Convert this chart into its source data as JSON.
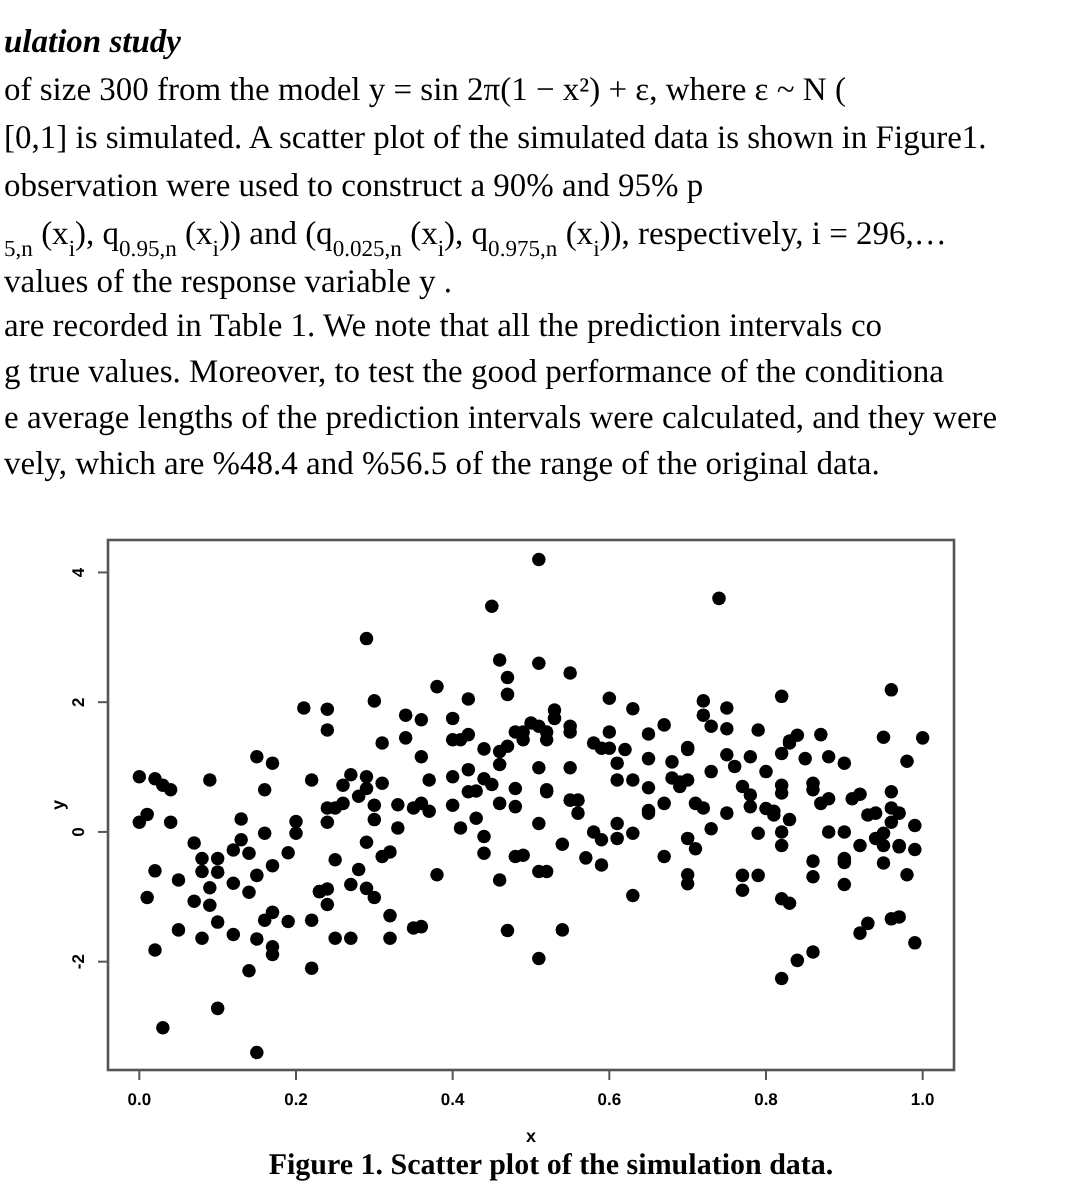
{
  "chart_data": {
    "type": "scatter",
    "xlabel": "x",
    "ylabel": "y",
    "xlim": [
      -0.04,
      1.04
    ],
    "ylim": [
      -3.67,
      4.5
    ],
    "xticks": [
      {
        "value": 0,
        "label": "0.0"
      },
      0.2,
      0.4,
      0.6,
      0.8,
      {
        "value": 1,
        "label": "1.0"
      }
    ],
    "yticks": [
      -2,
      0,
      2,
      4
    ],
    "marker": "circle",
    "annotations": [
      "ulation study",
      "of size 300 from the model y = sin 2π(1 − x²) + ε, where ε ~ N (",
      "[0,1] is simulated. A scatter plot of the simulated data is shown in Figure1.",
      "observation were used to construct a 90% and 95% p",
      "$_{5,n}$ (x$_{i}$), q$_{0.95,n}$ (x$_{i}$)) and (q$_{0.025,n}$ (x$_{i}$), q$_{0.975,n}$ (x$_{i}$)), respectively, i = 296,…",
      "values of the response variable y .",
      "are recorded in Table 1. We note that all the prediction intervals co",
      "g true values. Moreover, to test the good performance of the conditiona",
      "e average lengths of the prediction intervals were calculated, and they were",
      "vely, which are %48.4 and %56.5 of the range of the original data.",
      "Figure 1. Scatter plot of the simulation data."
    ],
    "series": [
      {
        "color": "#000000",
        "x": [
          0.0,
          0.02,
          0.03,
          0.04,
          0.0,
          0.01,
          0.04,
          0.01,
          0.02,
          0.02,
          0.03,
          0.05,
          0.05,
          0.07,
          0.07,
          0.08,
          0.08,
          0.09,
          0.09,
          0.1,
          0.1,
          0.1,
          0.08,
          0.09,
          0.1,
          0.12,
          0.12,
          0.13,
          0.13,
          0.12,
          0.14,
          0.14,
          0.14,
          0.15,
          0.15,
          0.15,
          0.16,
          0.16,
          0.17,
          0.17,
          0.16,
          0.15,
          0.17,
          0.17,
          0.17,
          0.19,
          0.19,
          0.2,
          0.2,
          0.21,
          0.22,
          0.22,
          0.22,
          0.23,
          0.23,
          0.24,
          0.24,
          0.24,
          0.24,
          0.24,
          0.24,
          0.25,
          0.25,
          0.25,
          0.26,
          0.26,
          0.27,
          0.27,
          0.27,
          0.28,
          0.28,
          0.29,
          0.29,
          0.29,
          0.29,
          0.29,
          0.3,
          0.3,
          0.3,
          0.3,
          0.31,
          0.31,
          0.31,
          0.32,
          0.32,
          0.32,
          0.33,
          0.33,
          0.34,
          0.34,
          0.35,
          0.35,
          0.36,
          0.36,
          0.36,
          0.36,
          0.37,
          0.37,
          0.38,
          0.38,
          0.4,
          0.4,
          0.4,
          0.4,
          0.41,
          0.41,
          0.42,
          0.42,
          0.42,
          0.42,
          0.43,
          0.43,
          0.44,
          0.44,
          0.44,
          0.44,
          0.45,
          0.45,
          0.46,
          0.46,
          0.46,
          0.46,
          0.47,
          0.46,
          0.47,
          0.47,
          0.47,
          0.48,
          0.48,
          0.48,
          0.48,
          0.51,
          0.51,
          0.49,
          0.5,
          0.49,
          0.51,
          0.52,
          0.52,
          0.53,
          0.53,
          0.51,
          0.52,
          0.52,
          0.51,
          0.49,
          0.51,
          0.52,
          0.51,
          0.54,
          0.54,
          0.55,
          0.55,
          0.55,
          0.55,
          0.55,
          0.56,
          0.56,
          0.57,
          0.58,
          0.58,
          0.59,
          0.59,
          0.59,
          0.6,
          0.6,
          0.6,
          0.61,
          0.61,
          0.61,
          0.61,
          0.62,
          0.63,
          0.63,
          0.63,
          0.63,
          0.65,
          0.65,
          0.65,
          0.65,
          0.65,
          0.67,
          0.67,
          0.67,
          0.68,
          0.68,
          0.69,
          0.69,
          0.7,
          0.7,
          0.7,
          0.7,
          0.7,
          0.7,
          0.71,
          0.71,
          0.72,
          0.72,
          0.72,
          0.73,
          0.73,
          0.73,
          0.74,
          0.75,
          0.75,
          0.75,
          0.75,
          0.76,
          0.77,
          0.77,
          0.77,
          0.78,
          0.78,
          0.78,
          0.79,
          0.79,
          0.79,
          0.8,
          0.8,
          0.81,
          0.81,
          0.82,
          0.82,
          0.82,
          0.82,
          0.82,
          0.82,
          0.82,
          0.83,
          0.83,
          0.82,
          0.83,
          0.83,
          0.84,
          0.84,
          0.85,
          0.86,
          0.86,
          0.86,
          0.86,
          0.86,
          0.87,
          0.87,
          0.88,
          0.88,
          0.88,
          0.9,
          0.9,
          0.9,
          0.9,
          0.9,
          0.91,
          0.92,
          0.92,
          0.92,
          0.93,
          0.93,
          0.94,
          0.94,
          0.95,
          0.95,
          0.95,
          0.95,
          0.96,
          0.96,
          0.96,
          0.96,
          0.96,
          0.97,
          0.97,
          0.97,
          0.97,
          0.98,
          0.98,
          0.99,
          0.99,
          0.99,
          1.0
        ],
        "values": [
          0.85,
          0.82,
          0.72,
          0.65,
          0.15,
          0.27,
          0.15,
          -1.01,
          -0.6,
          -1.82,
          -3.02,
          -0.74,
          -1.51,
          -0.17,
          -1.07,
          -0.61,
          -0.41,
          -0.86,
          -1.13,
          -0.41,
          -0.62,
          -1.39,
          -1.64,
          0.8,
          -2.72,
          -0.28,
          -0.79,
          -0.12,
          0.2,
          -1.58,
          -0.93,
          -0.33,
          -2.14,
          1.16,
          -3.4,
          -0.67,
          -0.02,
          -1.36,
          -1.24,
          1.06,
          0.65,
          -1.65,
          -1.77,
          -1.89,
          -0.52,
          -1.38,
          -0.32,
          -0.02,
          0.16,
          1.91,
          -1.36,
          0.8,
          -2.1,
          -0.92,
          -0.92,
          -1.12,
          1.57,
          0.37,
          1.89,
          0.15,
          -0.88,
          -1.64,
          -0.43,
          0.37,
          0.44,
          0.72,
          -1.64,
          0.88,
          -0.81,
          0.55,
          -0.58,
          2.98,
          -0.16,
          -0.87,
          0.85,
          0.67,
          0.41,
          0.19,
          -1.01,
          2.02,
          0.75,
          -0.38,
          1.37,
          -0.31,
          -1.29,
          -1.64,
          0.42,
          0.06,
          1.45,
          1.8,
          0.37,
          -1.48,
          1.73,
          1.16,
          0.44,
          -1.46,
          0.32,
          0.8,
          2.24,
          -0.66,
          1.75,
          1.42,
          0.41,
          0.85,
          0.06,
          1.42,
          0.96,
          0.62,
          1.5,
          2.05,
          0.63,
          0.21,
          1.28,
          0.82,
          -0.07,
          -0.33,
          3.48,
          0.73,
          -0.74,
          1.24,
          1.04,
          2.65,
          -1.52,
          0.44,
          1.32,
          2.38,
          2.12,
          0.67,
          1.54,
          -0.38,
          0.39,
          4.2,
          2.6,
          1.54,
          1.68,
          1.42,
          1.63,
          1.54,
          1.42,
          1.88,
          1.75,
          0.99,
          0.62,
          0.65,
          0.13,
          -0.36,
          -0.61,
          -0.61,
          -1.95,
          -1.51,
          -0.19,
          1.63,
          1.54,
          2.45,
          0.99,
          0.49,
          0.29,
          0.49,
          -0.4,
          1.37,
          0.0,
          -0.51,
          1.29,
          -0.12,
          1.29,
          2.06,
          1.54,
          1.06,
          0.8,
          -0.1,
          0.13,
          1.27,
          0.8,
          1.9,
          -0.98,
          -0.02,
          0.68,
          1.51,
          0.33,
          0.29,
          1.13,
          0.44,
          -0.38,
          1.65,
          1.08,
          0.83,
          0.77,
          0.7,
          0.8,
          -0.1,
          1.3,
          1.27,
          -0.8,
          -0.66,
          -0.26,
          0.44,
          0.37,
          1.8,
          2.02,
          0.93,
          1.63,
          0.05,
          3.6,
          1.91,
          1.59,
          1.19,
          0.29,
          1.01,
          0.7,
          -0.9,
          -0.67,
          0.39,
          0.57,
          1.16,
          -0.02,
          1.57,
          -0.67,
          0.93,
          0.36,
          0.26,
          0.32,
          0.72,
          -2.26,
          0.6,
          -0.21,
          0.0,
          2.09,
          -1.03,
          -1.1,
          0.19,
          1.21,
          1.4,
          1.37,
          -1.98,
          1.49,
          1.13,
          0.75,
          0.65,
          -0.45,
          -0.69,
          -1.85,
          1.5,
          0.44,
          0.51,
          0.0,
          1.16,
          1.06,
          0.0,
          -0.81,
          -0.41,
          -0.47,
          0.51,
          0.58,
          -1.56,
          -0.21,
          0.26,
          -1.41,
          -0.1,
          0.29,
          1.46,
          -0.48,
          -0.02,
          -0.21,
          0.15,
          0.37,
          0.62,
          -1.34,
          2.19,
          -0.21,
          -1.31,
          0.29,
          -0.23,
          1.09,
          -0.66,
          0.1,
          -0.27,
          -1.71,
          1.45
        ]
      }
    ]
  }
}
